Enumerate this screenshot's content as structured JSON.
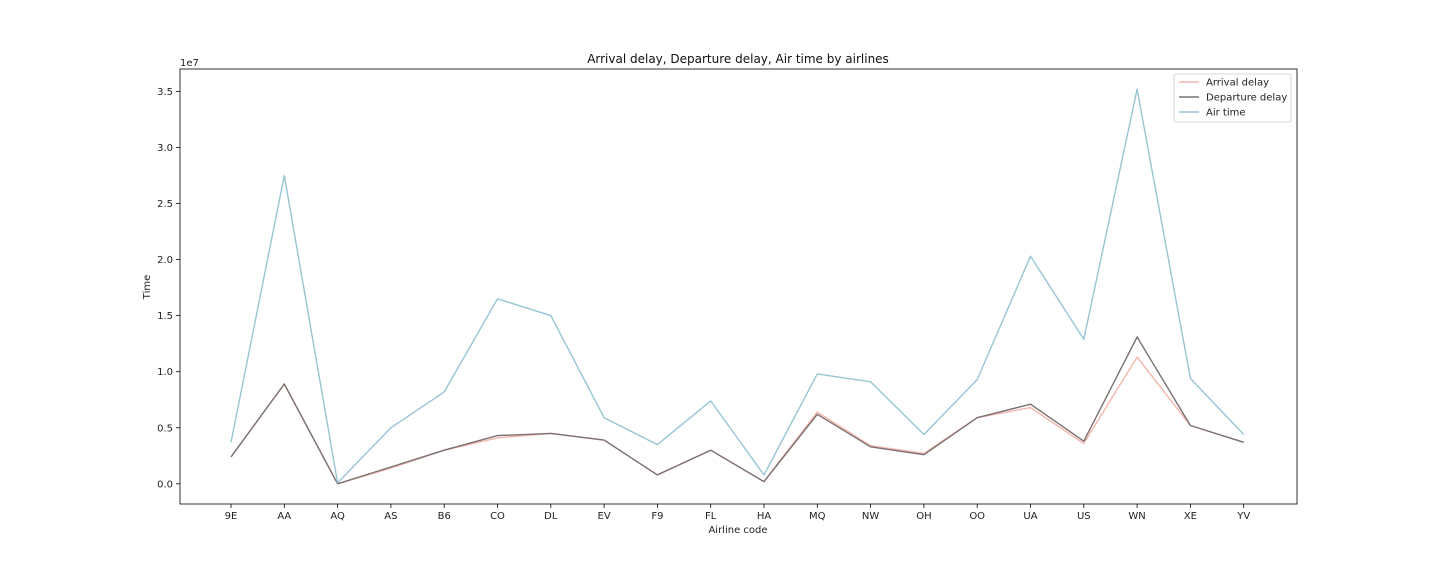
{
  "chart_data": {
    "type": "line",
    "title": "Arrival delay, Departure delay, Air time by airlines",
    "xlabel": "Airline code",
    "ylabel": "Time",
    "y_multiplier_label": "1e7",
    "ylim": [
      -1800000,
      37000000
    ],
    "yticks": [
      0,
      5000000,
      10000000,
      15000000,
      20000000,
      25000000,
      30000000,
      35000000
    ],
    "ytick_labels": [
      "0.0",
      "0.5",
      "1.0",
      "1.5",
      "2.0",
      "2.5",
      "3.0",
      "3.5"
    ],
    "grid": false,
    "legend_position": "top-right",
    "categories": [
      "9E",
      "AA",
      "AQ",
      "AS",
      "B6",
      "CO",
      "DL",
      "EV",
      "F9",
      "FL",
      "HA",
      "MQ",
      "NW",
      "OH",
      "OO",
      "UA",
      "US",
      "WN",
      "XE",
      "YV"
    ],
    "series": [
      {
        "name": "Arrival delay",
        "color": "#f4b6ad",
        "values": [
          2400000,
          8900000,
          0,
          1400000,
          3000000,
          4100000,
          4500000,
          3900000,
          800000,
          3000000,
          200000,
          6400000,
          3400000,
          2700000,
          5900000,
          6800000,
          3600000,
          11300000,
          5200000,
          3700000
        ]
      },
      {
        "name": "Departure delay",
        "color": "#7a7170",
        "values": [
          2400000,
          8900000,
          0,
          1500000,
          3000000,
          4300000,
          4500000,
          3900000,
          800000,
          3000000,
          200000,
          6200000,
          3300000,
          2600000,
          5900000,
          7100000,
          3800000,
          13100000,
          5200000,
          3700000
        ]
      },
      {
        "name": "Air time",
        "color": "#97c6d3",
        "values": [
          3700000,
          27500000,
          100000,
          5000000,
          8200000,
          16500000,
          15000000,
          5900000,
          3500000,
          7400000,
          800000,
          9800000,
          9100000,
          4400000,
          9300000,
          20300000,
          12900000,
          35200000,
          9400000,
          4400000
        ]
      }
    ]
  }
}
